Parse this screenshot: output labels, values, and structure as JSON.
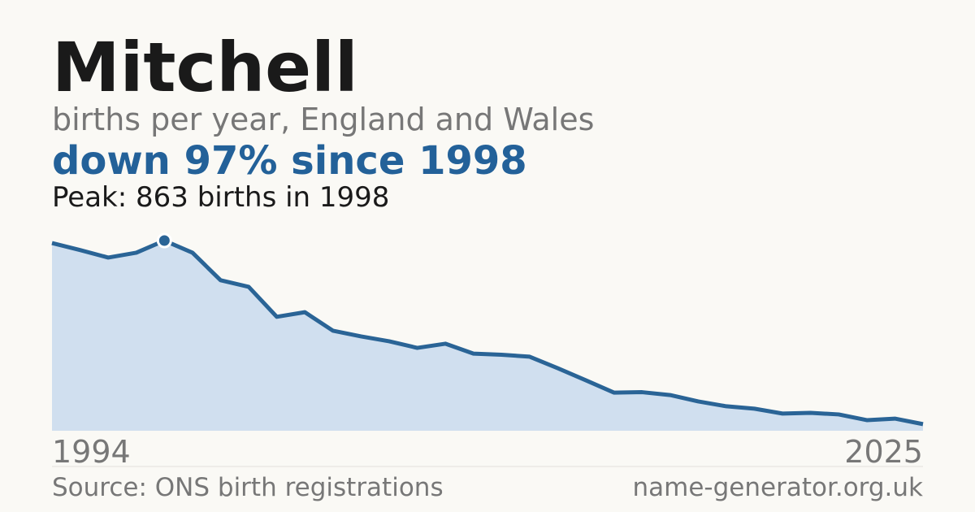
{
  "chart_data": {
    "type": "area",
    "title": "Mitchell",
    "subtitle": "births per year, England and Wales",
    "headline": "down 97% since 1998",
    "annotation": "Peak: 863 births in 1998",
    "x": [
      1994,
      1995,
      1996,
      1997,
      1998,
      1999,
      2000,
      2001,
      2002,
      2003,
      2004,
      2005,
      2006,
      2007,
      2008,
      2009,
      2010,
      2011,
      2012,
      2013,
      2014,
      2015,
      2016,
      2017,
      2018,
      2019,
      2020,
      2021,
      2022,
      2023,
      2024,
      2025
    ],
    "values": [
      852,
      820,
      786,
      808,
      863,
      808,
      683,
      653,
      517,
      538,
      454,
      428,
      406,
      376,
      395,
      350,
      345,
      336,
      284,
      229,
      173,
      175,
      162,
      133,
      111,
      100,
      78,
      81,
      74,
      48,
      55,
      30
    ],
    "color": "#2a6496",
    "fill": "#d0dfef",
    "xlim": [
      1994,
      2025
    ],
    "xticks": [
      1994,
      2025
    ],
    "ylim": [
      0,
      900
    ]
  },
  "footer": {
    "source": "Source: ONS birth registrations",
    "site": "name-generator.org.uk"
  }
}
